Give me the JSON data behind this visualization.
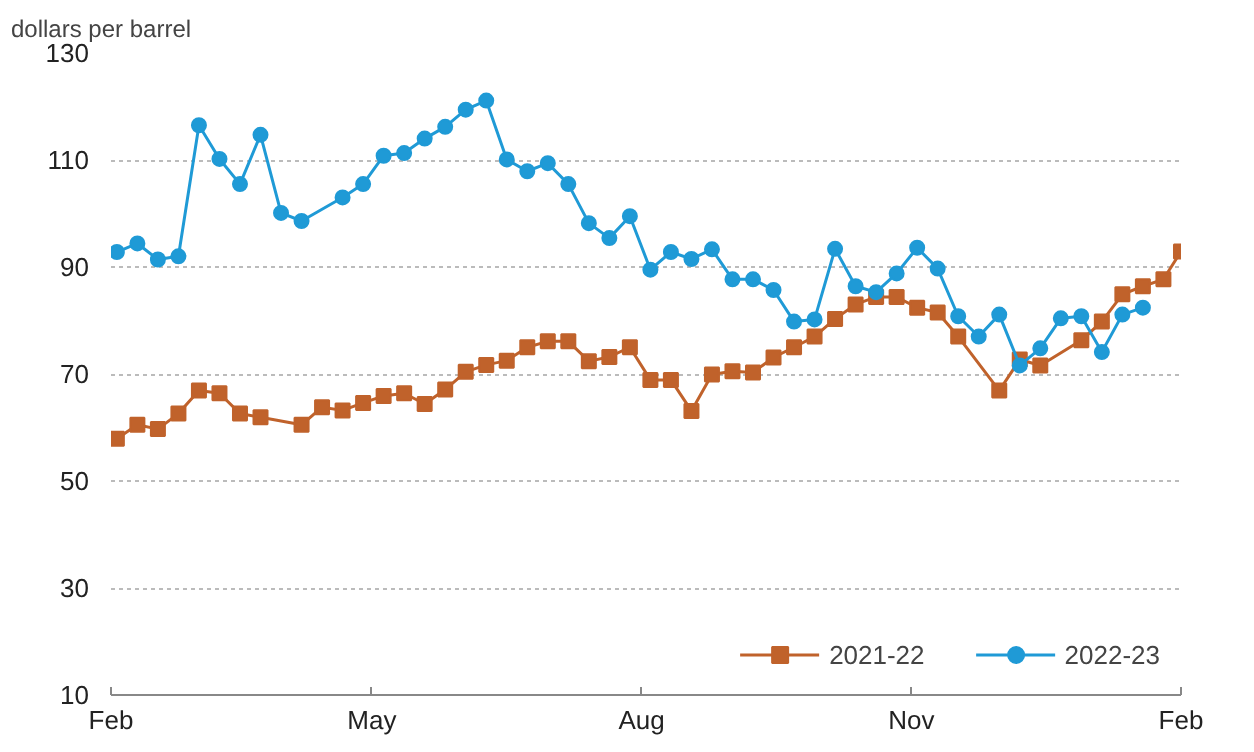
{
  "chart_data": {
    "type": "line",
    "ylabel": "dollars per barrel",
    "xlim": [
      "2021-02-01",
      "2022-02-01"
    ],
    "xticks": [
      {
        "value": "2021-02-01",
        "label": "Feb"
      },
      {
        "value": "2021-05-01",
        "label": "May"
      },
      {
        "value": "2021-08-01",
        "label": "Aug"
      },
      {
        "value": "2021-11-01",
        "label": "Nov"
      },
      {
        "value": "2022-02-01",
        "label": "Feb"
      }
    ],
    "ylim": [
      10,
      130
    ],
    "yticks": [
      10,
      30,
      50,
      70,
      90,
      110,
      130
    ],
    "grid": "y",
    "legend": "bottom",
    "line_style": "solid",
    "series": [
      {
        "name": "2021-22",
        "color": "#c0622b",
        "marker": "square",
        "x": [
          "2021-02-03",
          "2021-02-10",
          "2021-02-17",
          "2021-02-24",
          "2021-03-03",
          "2021-03-10",
          "2021-03-17",
          "2021-03-24",
          "2021-04-07",
          "2021-04-14",
          "2021-04-21",
          "2021-04-28",
          "2021-05-05",
          "2021-05-12",
          "2021-05-19",
          "2021-05-26",
          "2021-06-02",
          "2021-06-09",
          "2021-06-16",
          "2021-06-23",
          "2021-06-30",
          "2021-07-07",
          "2021-07-14",
          "2021-07-21",
          "2021-07-28",
          "2021-08-04",
          "2021-08-11",
          "2021-08-18",
          "2021-08-25",
          "2021-09-01",
          "2021-09-08",
          "2021-09-15",
          "2021-09-22",
          "2021-09-29",
          "2021-10-06",
          "2021-10-13",
          "2021-10-20",
          "2021-10-27",
          "2021-11-03",
          "2021-11-10",
          "2021-11-17",
          "2021-12-01",
          "2021-12-08",
          "2021-12-15",
          "2021-12-29",
          "2022-01-05",
          "2022-01-12",
          "2022-01-19",
          "2022-01-26",
          "2022-02-01"
        ],
        "values": [
          57.9,
          60.5,
          59.7,
          62.6,
          66.9,
          66.4,
          62.6,
          61.9,
          60.5,
          63.8,
          63.2,
          64.6,
          65.9,
          66.4,
          64.4,
          67.1,
          70.4,
          71.7,
          72.5,
          75.0,
          76.1,
          76.1,
          72.4,
          73.2,
          75.0,
          68.9,
          68.9,
          63.1,
          69.9,
          70.5,
          70.3,
          73.1,
          75.0,
          77.0,
          80.3,
          83.0,
          84.4,
          84.4,
          82.4,
          81.5,
          77.0,
          66.9,
          72.7,
          71.6,
          76.3,
          79.8,
          84.9,
          86.4,
          87.7,
          92.9
        ]
      },
      {
        "name": "2022-23",
        "color": "#1f9ad6",
        "marker": "circle",
        "x": [
          "2021-02-03",
          "2021-02-10",
          "2021-02-17",
          "2021-02-24",
          "2021-03-03",
          "2021-03-10",
          "2021-03-17",
          "2021-03-24",
          "2021-03-31",
          "2021-04-07",
          "2021-04-21",
          "2021-04-28",
          "2021-05-05",
          "2021-05-12",
          "2021-05-19",
          "2021-05-26",
          "2021-06-02",
          "2021-06-09",
          "2021-06-16",
          "2021-06-23",
          "2021-06-30",
          "2021-07-07",
          "2021-07-14",
          "2021-07-21",
          "2021-07-28",
          "2021-08-04",
          "2021-08-11",
          "2021-08-18",
          "2021-08-25",
          "2021-09-01",
          "2021-09-08",
          "2021-09-15",
          "2021-09-22",
          "2021-09-29",
          "2021-10-06",
          "2021-10-13",
          "2021-10-20",
          "2021-10-27",
          "2021-11-03",
          "2021-11-10",
          "2021-11-17",
          "2021-11-24",
          "2021-12-01",
          "2021-12-08",
          "2021-12-15",
          "2021-12-22",
          "2021-12-29",
          "2022-01-05",
          "2022-01-12",
          "2022-01-19"
        ],
        "values": [
          92.8,
          94.4,
          91.4,
          92.0,
          116.5,
          110.2,
          105.5,
          114.7,
          100.1,
          98.6,
          103.0,
          105.5,
          110.8,
          111.3,
          114.0,
          116.2,
          119.4,
          121.1,
          110.1,
          107.9,
          109.4,
          105.5,
          98.2,
          95.4,
          99.5,
          89.5,
          92.8,
          91.5,
          93.3,
          87.7,
          87.7,
          85.7,
          79.8,
          80.2,
          93.4,
          86.4,
          85.3,
          88.8,
          93.6,
          89.7,
          80.8,
          77.0,
          81.1,
          71.6,
          74.8,
          80.4,
          80.8,
          74.1,
          81.1,
          82.4
        ]
      }
    ]
  }
}
